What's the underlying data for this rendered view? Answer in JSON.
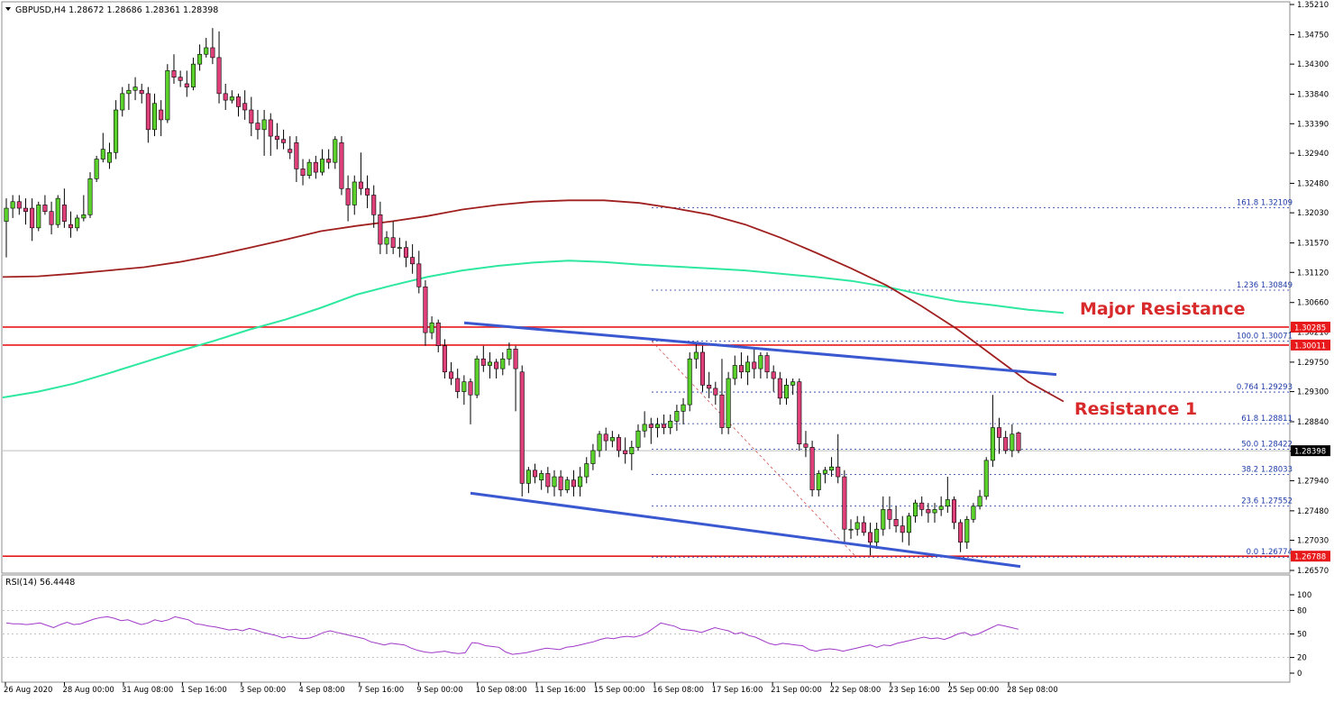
{
  "header": {
    "symbol_line": "GBPUSD,H4  1.28672 1.28686 1.28361 1.28398"
  },
  "rsi_header": "RSI(14) 56.4448",
  "colors": {
    "bull": "#5bd22c",
    "bear": "#e0407a",
    "ma_fast": "#a02020",
    "ma_slow": "#2ee8a0",
    "channel": "#3a58d0",
    "hline": "#e8191b",
    "fib": "#1d3aa8",
    "rsi": "#a039c8",
    "annotation": "#d82a2a"
  },
  "chart_data": [
    {
      "type": "candlestick",
      "title": "GBPUSD,H4",
      "ylim": [
        1.2657,
        1.3521
      ],
      "y_ticks": [
        "1.35210",
        "1.34750",
        "1.34300",
        "1.33840",
        "1.33390",
        "1.32940",
        "1.32480",
        "1.32030",
        "1.31570",
        "1.31120",
        "1.30660",
        "1.30210",
        "1.29750",
        "1.29300",
        "1.28840",
        "1.28390",
        "1.27940",
        "1.27480",
        "1.27030",
        "1.26570"
      ],
      "x_ticks": [
        "26 Aug 2020",
        "28 Aug 00:00",
        "31 Aug 08:00",
        "1 Sep 16:00",
        "3 Sep 00:00",
        "4 Sep 08:00",
        "7 Sep 16:00",
        "9 Sep 00:00",
        "10 Sep 08:00",
        "11 Sep 16:00",
        "15 Sep 00:00",
        "16 Sep 08:00",
        "17 Sep 16:00",
        "21 Sep 00:00",
        "22 Sep 08:00",
        "23 Sep 16:00",
        "25 Sep 00:00",
        "28 Sep 08:00"
      ],
      "current_price": "1.28398",
      "price_boxes": [
        "1.30285",
        "1.30011",
        "1.26788"
      ],
      "horizontal_levels": [
        1.30285,
        1.30011,
        1.26788
      ],
      "candles": [
        [
          1.319,
          1.3225,
          1.3135,
          1.321
        ],
        [
          1.321,
          1.323,
          1.3195,
          1.322
        ],
        [
          1.322,
          1.323,
          1.32,
          1.321
        ],
        [
          1.321,
          1.3225,
          1.3185,
          1.3205
        ],
        [
          1.321,
          1.3225,
          1.316,
          1.318
        ],
        [
          1.318,
          1.322,
          1.3175,
          1.3215
        ],
        [
          1.3215,
          1.323,
          1.32,
          1.3205
        ],
        [
          1.3205,
          1.322,
          1.317,
          1.3185
        ],
        [
          1.3185,
          1.323,
          1.318,
          1.3225
        ],
        [
          1.3215,
          1.324,
          1.318,
          1.319
        ],
        [
          1.3185,
          1.3205,
          1.3165,
          1.318
        ],
        [
          1.318,
          1.32,
          1.3175,
          1.3195
        ],
        [
          1.3195,
          1.323,
          1.319,
          1.32
        ],
        [
          1.32,
          1.3265,
          1.3195,
          1.3255
        ],
        [
          1.3255,
          1.329,
          1.325,
          1.3285
        ],
        [
          1.3285,
          1.3325,
          1.328,
          1.33
        ],
        [
          1.328,
          1.331,
          1.327,
          1.3295
        ],
        [
          1.3295,
          1.3375,
          1.3285,
          1.336
        ],
        [
          1.336,
          1.3395,
          1.335,
          1.3385
        ],
        [
          1.3385,
          1.34,
          1.336,
          1.339
        ],
        [
          1.339,
          1.341,
          1.3375,
          1.3395
        ],
        [
          1.339,
          1.34,
          1.337,
          1.3385
        ],
        [
          1.3385,
          1.3395,
          1.331,
          1.333
        ],
        [
          1.333,
          1.3385,
          1.332,
          1.337
        ],
        [
          1.336,
          1.3375,
          1.332,
          1.3345
        ],
        [
          1.3345,
          1.343,
          1.334,
          1.342
        ],
        [
          1.342,
          1.3445,
          1.34,
          1.341
        ],
        [
          1.341,
          1.342,
          1.3395,
          1.3405
        ],
        [
          1.34,
          1.342,
          1.338,
          1.3395
        ],
        [
          1.3395,
          1.344,
          1.339,
          1.343
        ],
        [
          1.343,
          1.346,
          1.342,
          1.3445
        ],
        [
          1.3445,
          1.347,
          1.344,
          1.3455
        ],
        [
          1.3455,
          1.3485,
          1.343,
          1.344
        ],
        [
          1.344,
          1.348,
          1.337,
          1.3385
        ],
        [
          1.3385,
          1.34,
          1.336,
          1.3375
        ],
        [
          1.3375,
          1.339,
          1.337,
          1.338
        ],
        [
          1.338,
          1.3385,
          1.335,
          1.3365
        ],
        [
          1.337,
          1.339,
          1.3345,
          1.336
        ],
        [
          1.336,
          1.338,
          1.332,
          1.334
        ],
        [
          1.334,
          1.336,
          1.3315,
          1.333
        ],
        [
          1.333,
          1.336,
          1.329,
          1.3345
        ],
        [
          1.3345,
          1.3355,
          1.329,
          1.332
        ],
        [
          1.332,
          1.334,
          1.33,
          1.3315
        ],
        [
          1.3315,
          1.333,
          1.33,
          1.331
        ],
        [
          1.33,
          1.332,
          1.3285,
          1.3295
        ],
        [
          1.331,
          1.332,
          1.325,
          1.327
        ],
        [
          1.327,
          1.3285,
          1.3245,
          1.326
        ],
        [
          1.326,
          1.3285,
          1.3255,
          1.328
        ],
        [
          1.328,
          1.329,
          1.3255,
          1.3265
        ],
        [
          1.3265,
          1.33,
          1.326,
          1.3285
        ],
        [
          1.3285,
          1.33,
          1.327,
          1.328
        ],
        [
          1.328,
          1.332,
          1.327,
          1.3315
        ],
        [
          1.331,
          1.332,
          1.323,
          1.324
        ],
        [
          1.324,
          1.326,
          1.319,
          1.3215
        ],
        [
          1.3215,
          1.326,
          1.32,
          1.325
        ],
        [
          1.325,
          1.3295,
          1.323,
          1.324
        ],
        [
          1.324,
          1.326,
          1.321,
          1.323
        ],
        [
          1.323,
          1.3245,
          1.318,
          1.32
        ],
        [
          1.32,
          1.322,
          1.314,
          1.3155
        ],
        [
          1.3155,
          1.3175,
          1.314,
          1.3165
        ],
        [
          1.3165,
          1.319,
          1.314,
          1.315
        ],
        [
          1.315,
          1.3165,
          1.3135,
          1.315
        ],
        [
          1.315,
          1.316,
          1.312,
          1.3135
        ],
        [
          1.3135,
          1.3155,
          1.311,
          1.3125
        ],
        [
          1.3125,
          1.3145,
          1.308,
          1.309
        ],
        [
          1.309,
          1.31,
          1.3,
          1.302
        ],
        [
          1.302,
          1.3045,
          1.301,
          1.3035
        ],
        [
          1.3035,
          1.304,
          1.299,
          1.3
        ],
        [
          1.3,
          1.301,
          1.295,
          1.296
        ],
        [
          1.296,
          1.2975,
          1.294,
          1.295
        ],
        [
          1.295,
          1.2965,
          1.292,
          1.293
        ],
        [
          1.293,
          1.2955,
          1.291,
          1.2945
        ],
        [
          1.2945,
          1.295,
          1.288,
          1.2925
        ],
        [
          1.2925,
          1.2985,
          1.292,
          1.298
        ],
        [
          1.298,
          1.3,
          1.296,
          1.297
        ],
        [
          1.297,
          1.299,
          1.295,
          1.2975
        ],
        [
          1.2975,
          1.298,
          1.295,
          1.2965
        ],
        [
          1.2965,
          1.299,
          1.2955,
          1.298
        ],
        [
          1.298,
          1.3005,
          1.297,
          1.2995
        ],
        [
          1.2995,
          1.3,
          1.29,
          1.2965
        ],
        [
          1.296,
          1.297,
          1.277,
          1.279
        ],
        [
          1.279,
          1.2815,
          1.2775,
          1.281
        ],
        [
          1.281,
          1.282,
          1.279,
          1.28
        ],
        [
          1.2795,
          1.281,
          1.278,
          1.2805
        ],
        [
          1.2805,
          1.2815,
          1.2775,
          1.2785
        ],
        [
          1.2785,
          1.281,
          1.277,
          1.28
        ],
        [
          1.28,
          1.281,
          1.277,
          1.278
        ],
        [
          1.278,
          1.28,
          1.2775,
          1.2795
        ],
        [
          1.2795,
          1.281,
          1.277,
          1.2785
        ],
        [
          1.2785,
          1.2815,
          1.277,
          1.28
        ],
        [
          1.28,
          1.283,
          1.279,
          1.282
        ],
        [
          1.282,
          1.285,
          1.281,
          1.284
        ],
        [
          1.284,
          1.287,
          1.283,
          1.2865
        ],
        [
          1.2865,
          1.2875,
          1.284,
          1.2855
        ],
        [
          1.2855,
          1.287,
          1.2845,
          1.286
        ],
        [
          1.286,
          1.2865,
          1.283,
          1.284
        ],
        [
          1.284,
          1.286,
          1.282,
          1.2835
        ],
        [
          1.2835,
          1.2855,
          1.281,
          1.2845
        ],
        [
          1.2845,
          1.288,
          1.284,
          1.287
        ],
        [
          1.287,
          1.29,
          1.286,
          1.288
        ],
        [
          1.288,
          1.289,
          1.285,
          1.2875
        ],
        [
          1.2875,
          1.289,
          1.286,
          1.288
        ],
        [
          1.288,
          1.2895,
          1.2865,
          1.2875
        ],
        [
          1.2875,
          1.2895,
          1.2865,
          1.2885
        ],
        [
          1.2885,
          1.291,
          1.287,
          1.29
        ],
        [
          1.29,
          1.292,
          1.288,
          1.291
        ],
        [
          1.291,
          1.299,
          1.29,
          1.298
        ],
        [
          1.298,
          1.3005,
          1.2965,
          1.299
        ],
        [
          1.299,
          1.3,
          1.293,
          1.294
        ],
        [
          1.294,
          1.296,
          1.292,
          1.2935
        ],
        [
          1.2935,
          1.2945,
          1.291,
          1.2925
        ],
        [
          1.2925,
          1.298,
          1.2865,
          1.2875
        ],
        [
          1.2875,
          1.296,
          1.2865,
          1.295
        ],
        [
          1.295,
          1.2985,
          1.294,
          1.297
        ],
        [
          1.297,
          1.299,
          1.295,
          1.296
        ],
        [
          1.296,
          1.2985,
          1.294,
          1.2975
        ],
        [
          1.2975,
          1.2995,
          1.295,
          1.2965
        ],
        [
          1.2965,
          1.299,
          1.295,
          1.2985
        ],
        [
          1.2985,
          1.299,
          1.295,
          1.296
        ],
        [
          1.296,
          1.297,
          1.293,
          1.295
        ],
        [
          1.295,
          1.296,
          1.291,
          1.292
        ],
        [
          1.292,
          1.295,
          1.291,
          1.294
        ],
        [
          1.294,
          1.295,
          1.2925,
          1.2945
        ],
        [
          1.2945,
          1.295,
          1.284,
          1.285
        ],
        [
          1.285,
          1.287,
          1.283,
          1.2845
        ],
        [
          1.2845,
          1.2855,
          1.277,
          1.278
        ],
        [
          1.278,
          1.281,
          1.277,
          1.2805
        ],
        [
          1.2805,
          1.2815,
          1.279,
          1.281
        ],
        [
          1.281,
          1.283,
          1.28,
          1.2815
        ],
        [
          1.2815,
          1.2865,
          1.279,
          1.28
        ],
        [
          1.28,
          1.281,
          1.27,
          1.272
        ],
        [
          1.272,
          1.2735,
          1.2705,
          1.272
        ],
        [
          1.272,
          1.274,
          1.271,
          1.273
        ],
        [
          1.273,
          1.274,
          1.271,
          1.2715
        ],
        [
          1.2715,
          1.273,
          1.268,
          1.27
        ],
        [
          1.27,
          1.273,
          1.269,
          1.272
        ],
        [
          1.272,
          1.277,
          1.271,
          1.275
        ],
        [
          1.275,
          1.277,
          1.272,
          1.2735
        ],
        [
          1.2735,
          1.2755,
          1.2715,
          1.2725
        ],
        [
          1.2725,
          1.274,
          1.27,
          1.2715
        ],
        [
          1.2715,
          1.2745,
          1.2695,
          1.274
        ],
        [
          1.274,
          1.2765,
          1.273,
          1.276
        ],
        [
          1.276,
          1.277,
          1.274,
          1.275
        ],
        [
          1.275,
          1.276,
          1.273,
          1.2745
        ],
        [
          1.2745,
          1.276,
          1.273,
          1.275
        ],
        [
          1.275,
          1.277,
          1.274,
          1.2755
        ],
        [
          1.2755,
          1.28,
          1.2745,
          1.2765
        ],
        [
          1.2765,
          1.277,
          1.272,
          1.273
        ],
        [
          1.273,
          1.2735,
          1.2685,
          1.27
        ],
        [
          1.27,
          1.274,
          1.269,
          1.2735
        ],
        [
          1.2735,
          1.276,
          1.273,
          1.2755
        ],
        [
          1.2755,
          1.278,
          1.275,
          1.277
        ],
        [
          1.277,
          1.283,
          1.2765,
          1.2825
        ],
        [
          1.2825,
          1.2925,
          1.2815,
          1.2875
        ],
        [
          1.2875,
          1.289,
          1.2835,
          1.286
        ],
        [
          1.286,
          1.287,
          1.2835,
          1.284
        ],
        [
          1.284,
          1.288,
          1.283,
          1.2865
        ],
        [
          1.2867,
          1.2869,
          1.2836,
          1.284
        ]
      ]
    },
    {
      "type": "line",
      "title": "RSI(14) 56.4448",
      "ylim": [
        0,
        100
      ],
      "y_ticks": [
        "100",
        "80",
        "50",
        "20",
        "0"
      ],
      "levels": [
        80,
        50,
        20
      ],
      "values": [
        64,
        63,
        63,
        62,
        63,
        64,
        61,
        58,
        62,
        65,
        62,
        63,
        66,
        69,
        71,
        72,
        70,
        67,
        68,
        65,
        62,
        64,
        68,
        66,
        68,
        72,
        70,
        68,
        63,
        62,
        60,
        59,
        57,
        55,
        56,
        54,
        57,
        55,
        52,
        50,
        48,
        45,
        47,
        45,
        44,
        45,
        48,
        52,
        54,
        52,
        50,
        48,
        46,
        44,
        40,
        38,
        36,
        38,
        37,
        36,
        32,
        29,
        27,
        26,
        27,
        28,
        26,
        25,
        26,
        39,
        38,
        35,
        34,
        33,
        27,
        24,
        25,
        26,
        28,
        30,
        32,
        31,
        30,
        33,
        34,
        36,
        38,
        40,
        43,
        45,
        44,
        46,
        47,
        46,
        48,
        52,
        58,
        64,
        62,
        60,
        56,
        55,
        54,
        52,
        55,
        58,
        56,
        54,
        50,
        52,
        48,
        46,
        42,
        38,
        36,
        38,
        37,
        36,
        35,
        30,
        28,
        30,
        31,
        30,
        28,
        30,
        32,
        34,
        36,
        33,
        36,
        35,
        38,
        40,
        42,
        44,
        46,
        44,
        45,
        43,
        46,
        50,
        52,
        48,
        50,
        54,
        58,
        62,
        60,
        58,
        56
      ]
    }
  ],
  "indicators": {
    "ma_fast": [
      1.3105,
      1.3106,
      1.311,
      1.3115,
      1.312,
      1.3128,
      1.3138,
      1.315,
      1.3162,
      1.3175,
      1.3183,
      1.319,
      1.3198,
      1.3208,
      1.3215,
      1.322,
      1.3222,
      1.3222,
      1.3218,
      1.321,
      1.32,
      1.3185,
      1.3165,
      1.3142,
      1.3118,
      1.3092,
      1.306,
      1.3025,
      1.2985,
      1.2945,
      1.2915
    ],
    "ma_slow": [
      1.2921,
      1.293,
      1.2942,
      1.2958,
      1.2975,
      1.2992,
      1.3008,
      1.3025,
      1.304,
      1.3058,
      1.3078,
      1.3092,
      1.3105,
      1.3115,
      1.3122,
      1.3127,
      1.313,
      1.3128,
      1.3124,
      1.3121,
      1.3118,
      1.3115,
      1.311,
      1.3105,
      1.3099,
      1.309,
      1.3078,
      1.3068,
      1.3062,
      1.3055,
      1.305
    ],
    "channel_upper": [
      1.3035,
      1.2956
    ],
    "channel_lower": [
      1.2775,
      1.2663
    ],
    "fib_levels": [
      {
        "label": "161.8 1.32109",
        "value": 1.32109
      },
      {
        "label": "1.236 1.30849",
        "value": 1.30849
      },
      {
        "label": "100.0 1.30071",
        "value": 1.30071
      },
      {
        "label": "0.764 1.29293",
        "value": 1.29293
      },
      {
        "label": "61.8 1.28811",
        "value": 1.28811
      },
      {
        "label": "50.0 1.28422",
        "value": 1.28422
      },
      {
        "label": "38.2 1.28033",
        "value": 1.28033
      },
      {
        "label": "23.6 1.27552",
        "value": 1.27552
      },
      {
        "label": "0.0 1.26774",
        "value": 1.26774
      }
    ],
    "fib_diagonal": [
      1.30071,
      1.26774
    ]
  },
  "annotations": {
    "major_resistance": "Major Resistance",
    "resistance_1": "Resistance 1"
  }
}
